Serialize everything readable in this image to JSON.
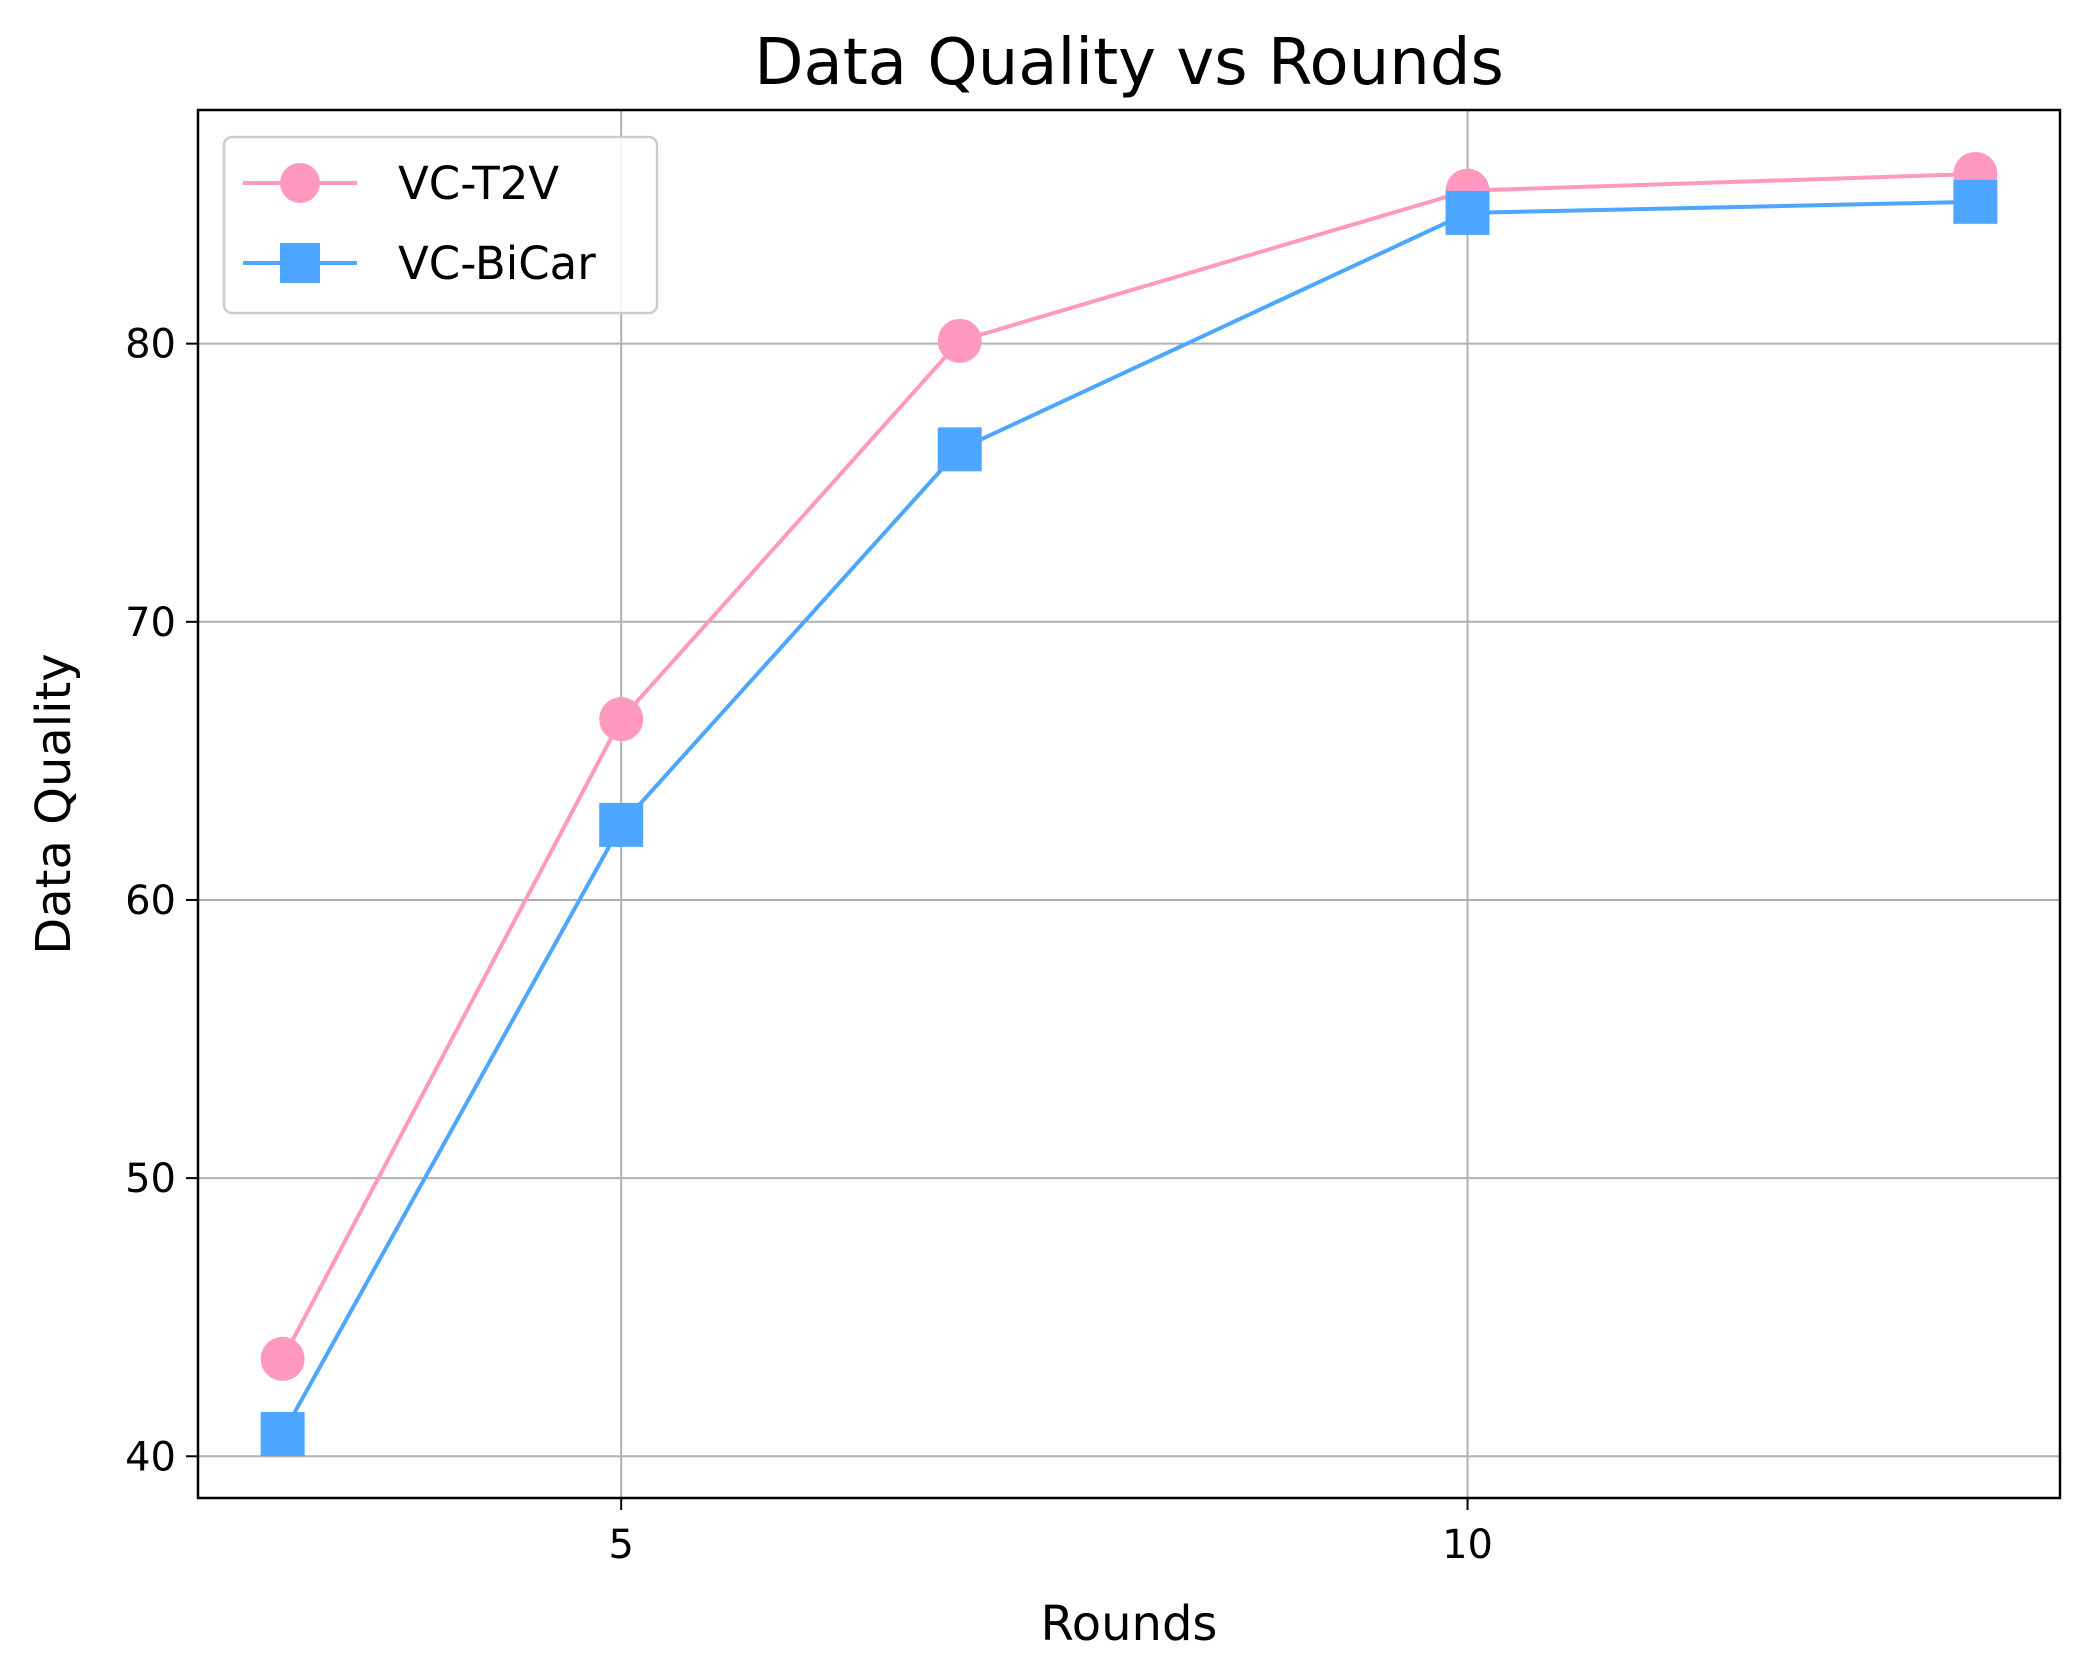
{
  "chart_data": {
    "type": "line",
    "title": "Data Quality vs Rounds",
    "xlabel": "Rounds",
    "ylabel": "Data Quality",
    "x": [
      3,
      5,
      7,
      10,
      13
    ],
    "xticks": [
      5,
      10
    ],
    "xlim": [
      2.5,
      13.5
    ],
    "yticks": [
      40,
      50,
      60,
      70,
      80
    ],
    "ylim": [
      38.5,
      88.4
    ],
    "grid": true,
    "legend_position": "top-left",
    "series": [
      {
        "name": "VC-T2V",
        "values": [
          43.5,
          66.5,
          80.1,
          85.5,
          86.1
        ],
        "color": "#ff99c0",
        "marker": "circle"
      },
      {
        "name": "VC-BiCar",
        "values": [
          40.8,
          62.7,
          76.2,
          84.7,
          85.1
        ],
        "color": "#4da6ff",
        "marker": "square"
      }
    ]
  }
}
